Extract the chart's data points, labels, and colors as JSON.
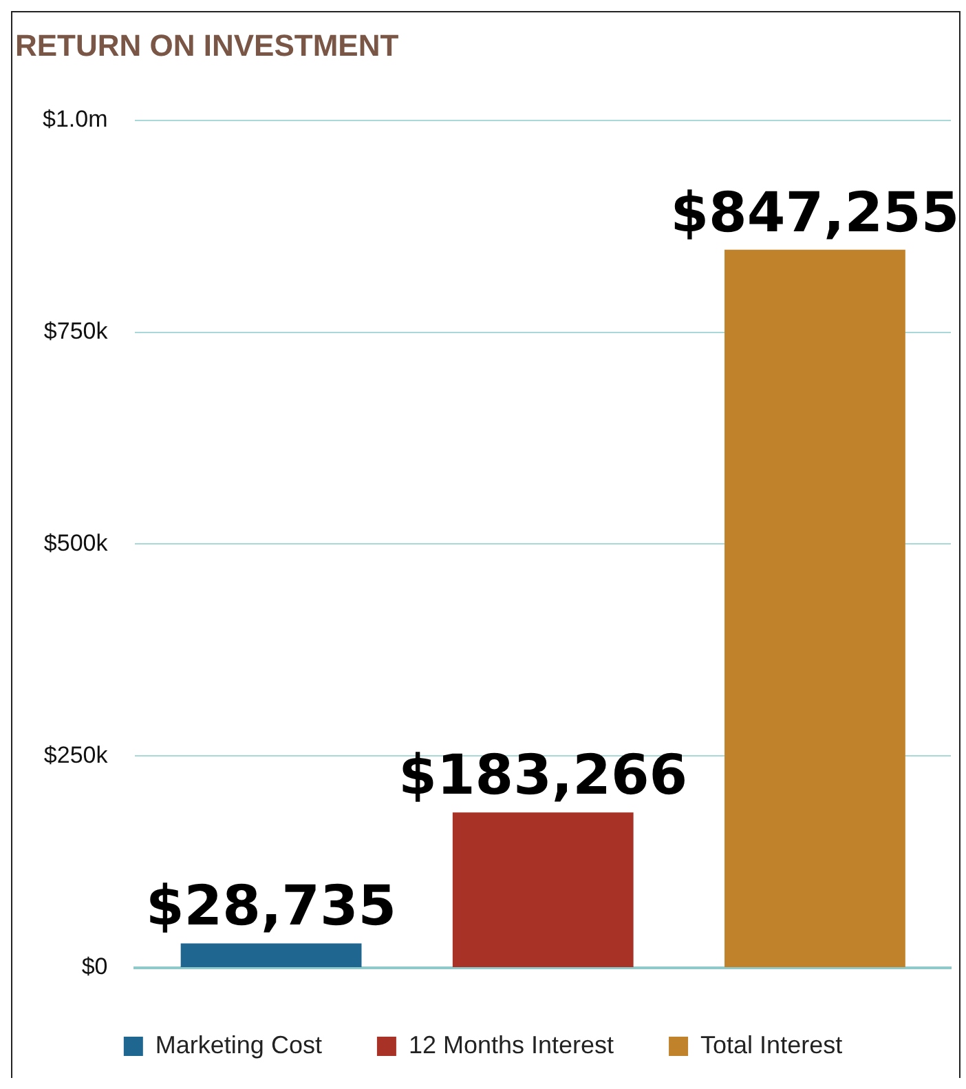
{
  "chart_data": {
    "type": "bar",
    "title": "RETURN ON INVESTMENT",
    "categories": [
      null,
      null,
      null
    ],
    "series": [
      {
        "name": "Marketing Cost",
        "color": "#1f6690",
        "values": [
          28735,
          null,
          null
        ],
        "value_labels": [
          "$28,735",
          null,
          null
        ]
      },
      {
        "name": "12 Months Interest",
        "color": "#a93226",
        "values": [
          null,
          183266,
          null
        ],
        "value_labels": [
          null,
          "$183,266",
          null
        ]
      },
      {
        "name": "Total Interest",
        "color": "#c0822b",
        "values": [
          null,
          null,
          847255
        ],
        "value_labels": [
          null,
          null,
          "$847,255"
        ]
      }
    ],
    "ylim": [
      0,
      1000000
    ],
    "yticks": [
      {
        "value": 0,
        "label": "$0"
      },
      {
        "value": 250000,
        "label": "$250k"
      },
      {
        "value": 500000,
        "label": "$500k"
      },
      {
        "value": 750000,
        "label": "$750k"
      },
      {
        "value": 1000000,
        "label": "$1.0m"
      }
    ],
    "grid": "y",
    "legend": "bottom"
  }
}
